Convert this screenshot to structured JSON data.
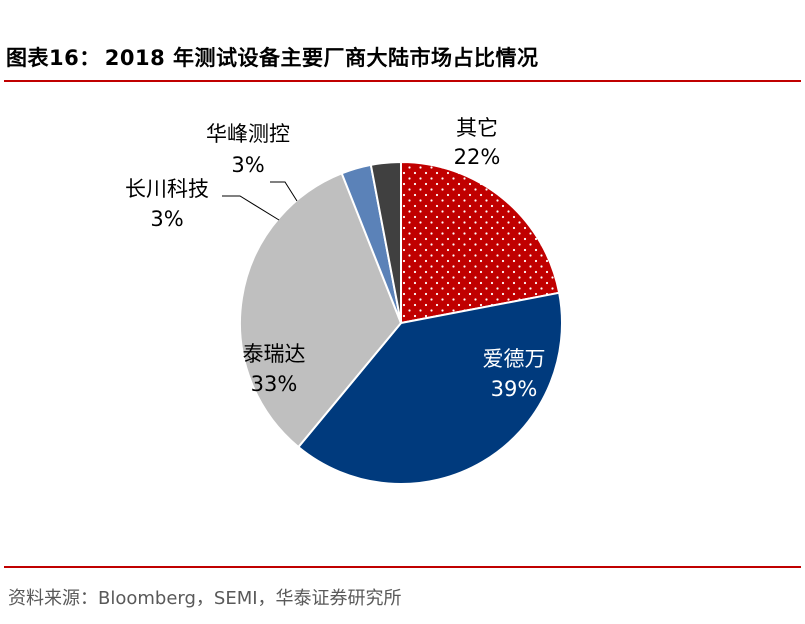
{
  "figure": {
    "number_label": "图表16：",
    "title": "2018 年测试设备主要厂商大陆市场占比情况"
  },
  "source_note": "资料来源：Bloomberg，SEMI，华泰证券研究所",
  "colors": {
    "rule": "#c00000",
    "其它": "#c00000",
    "爱德万": "#003a7d",
    "泰瑞达": "#bfbfbf",
    "长川科技": "#5b82b8",
    "华峰测控": "#404040"
  },
  "chart_data": {
    "type": "pie",
    "title": "2018 年测试设备主要厂商大陆市场占比情况",
    "start": "12 o'clock, clockwise",
    "legend": "none (labels on slices)",
    "slices": [
      {
        "name": "其它",
        "value": 22,
        "label": "22%",
        "pattern": "dots"
      },
      {
        "name": "爱德万",
        "value": 39,
        "label": "39%"
      },
      {
        "name": "泰瑞达",
        "value": 33,
        "label": "33%"
      },
      {
        "name": "长川科技",
        "value": 3,
        "label": "3%"
      },
      {
        "name": "华峰测控",
        "value": 3,
        "label": "3%"
      }
    ]
  }
}
